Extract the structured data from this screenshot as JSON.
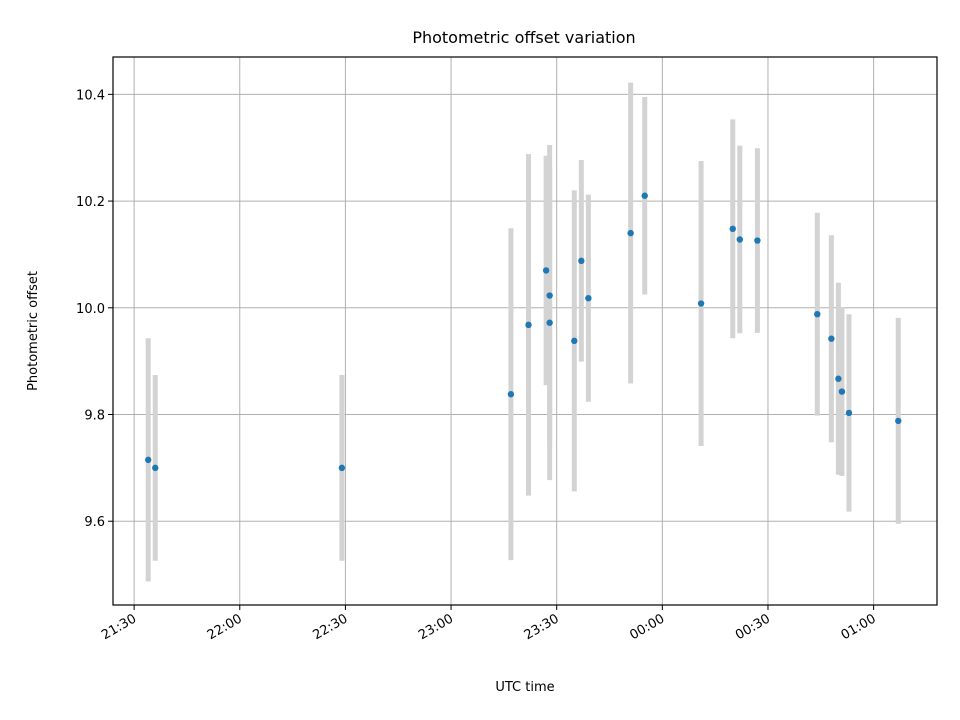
{
  "chart_data": {
    "type": "scatter",
    "title": "Photometric offset variation",
    "xlabel": "UTC time",
    "ylabel": "Photometric offset",
    "x_ticks": [
      "21:30",
      "22:00",
      "22:30",
      "23:00",
      "23:30",
      "00:00",
      "00:30",
      "01:00"
    ],
    "y_ticks": [
      "9.6",
      "9.8",
      "10.0",
      "10.2",
      "10.4"
    ],
    "xlim": [
      "21:24",
      "01:18"
    ],
    "ylim": [
      9.443,
      10.47
    ],
    "grid": true,
    "point_color": "#1f77b4",
    "errorbar_color": "#d3d3d3",
    "points": [
      {
        "x": "21:34",
        "y": 9.715,
        "err": 0.228
      },
      {
        "x": "21:36",
        "y": 9.7,
        "err": 0.174
      },
      {
        "x": "22:29",
        "y": 9.7,
        "err": 0.174
      },
      {
        "x": "23:17",
        "y": 9.838,
        "err": 0.311
      },
      {
        "x": "23:22",
        "y": 9.968,
        "err": 0.32
      },
      {
        "x": "23:27",
        "y": 10.07,
        "err": 0.215
      },
      {
        "x": "23:28",
        "y": 9.972,
        "err": 0.295
      },
      {
        "x": "23:28",
        "y": 10.023,
        "err": 0.282
      },
      {
        "x": "23:35",
        "y": 9.938,
        "err": 0.282
      },
      {
        "x": "23:37",
        "y": 10.088,
        "err": 0.189
      },
      {
        "x": "23:39",
        "y": 10.018,
        "err": 0.194
      },
      {
        "x": "23:51",
        "y": 10.14,
        "err": 0.282
      },
      {
        "x": "23:55",
        "y": 10.21,
        "err": 0.185
      },
      {
        "x": "00:11",
        "y": 10.008,
        "err": 0.267
      },
      {
        "x": "00:20",
        "y": 10.148,
        "err": 0.205
      },
      {
        "x": "00:22",
        "y": 10.128,
        "err": 0.176
      },
      {
        "x": "00:27",
        "y": 10.126,
        "err": 0.173
      },
      {
        "x": "00:44",
        "y": 9.988,
        "err": 0.19
      },
      {
        "x": "00:48",
        "y": 9.942,
        "err": 0.194
      },
      {
        "x": "00:50",
        "y": 9.867,
        "err": 0.18
      },
      {
        "x": "00:51",
        "y": 9.843,
        "err": 0.158
      },
      {
        "x": "00:53",
        "y": 9.803,
        "err": 0.185
      },
      {
        "x": "01:07",
        "y": 9.788,
        "err": 0.193
      }
    ]
  }
}
